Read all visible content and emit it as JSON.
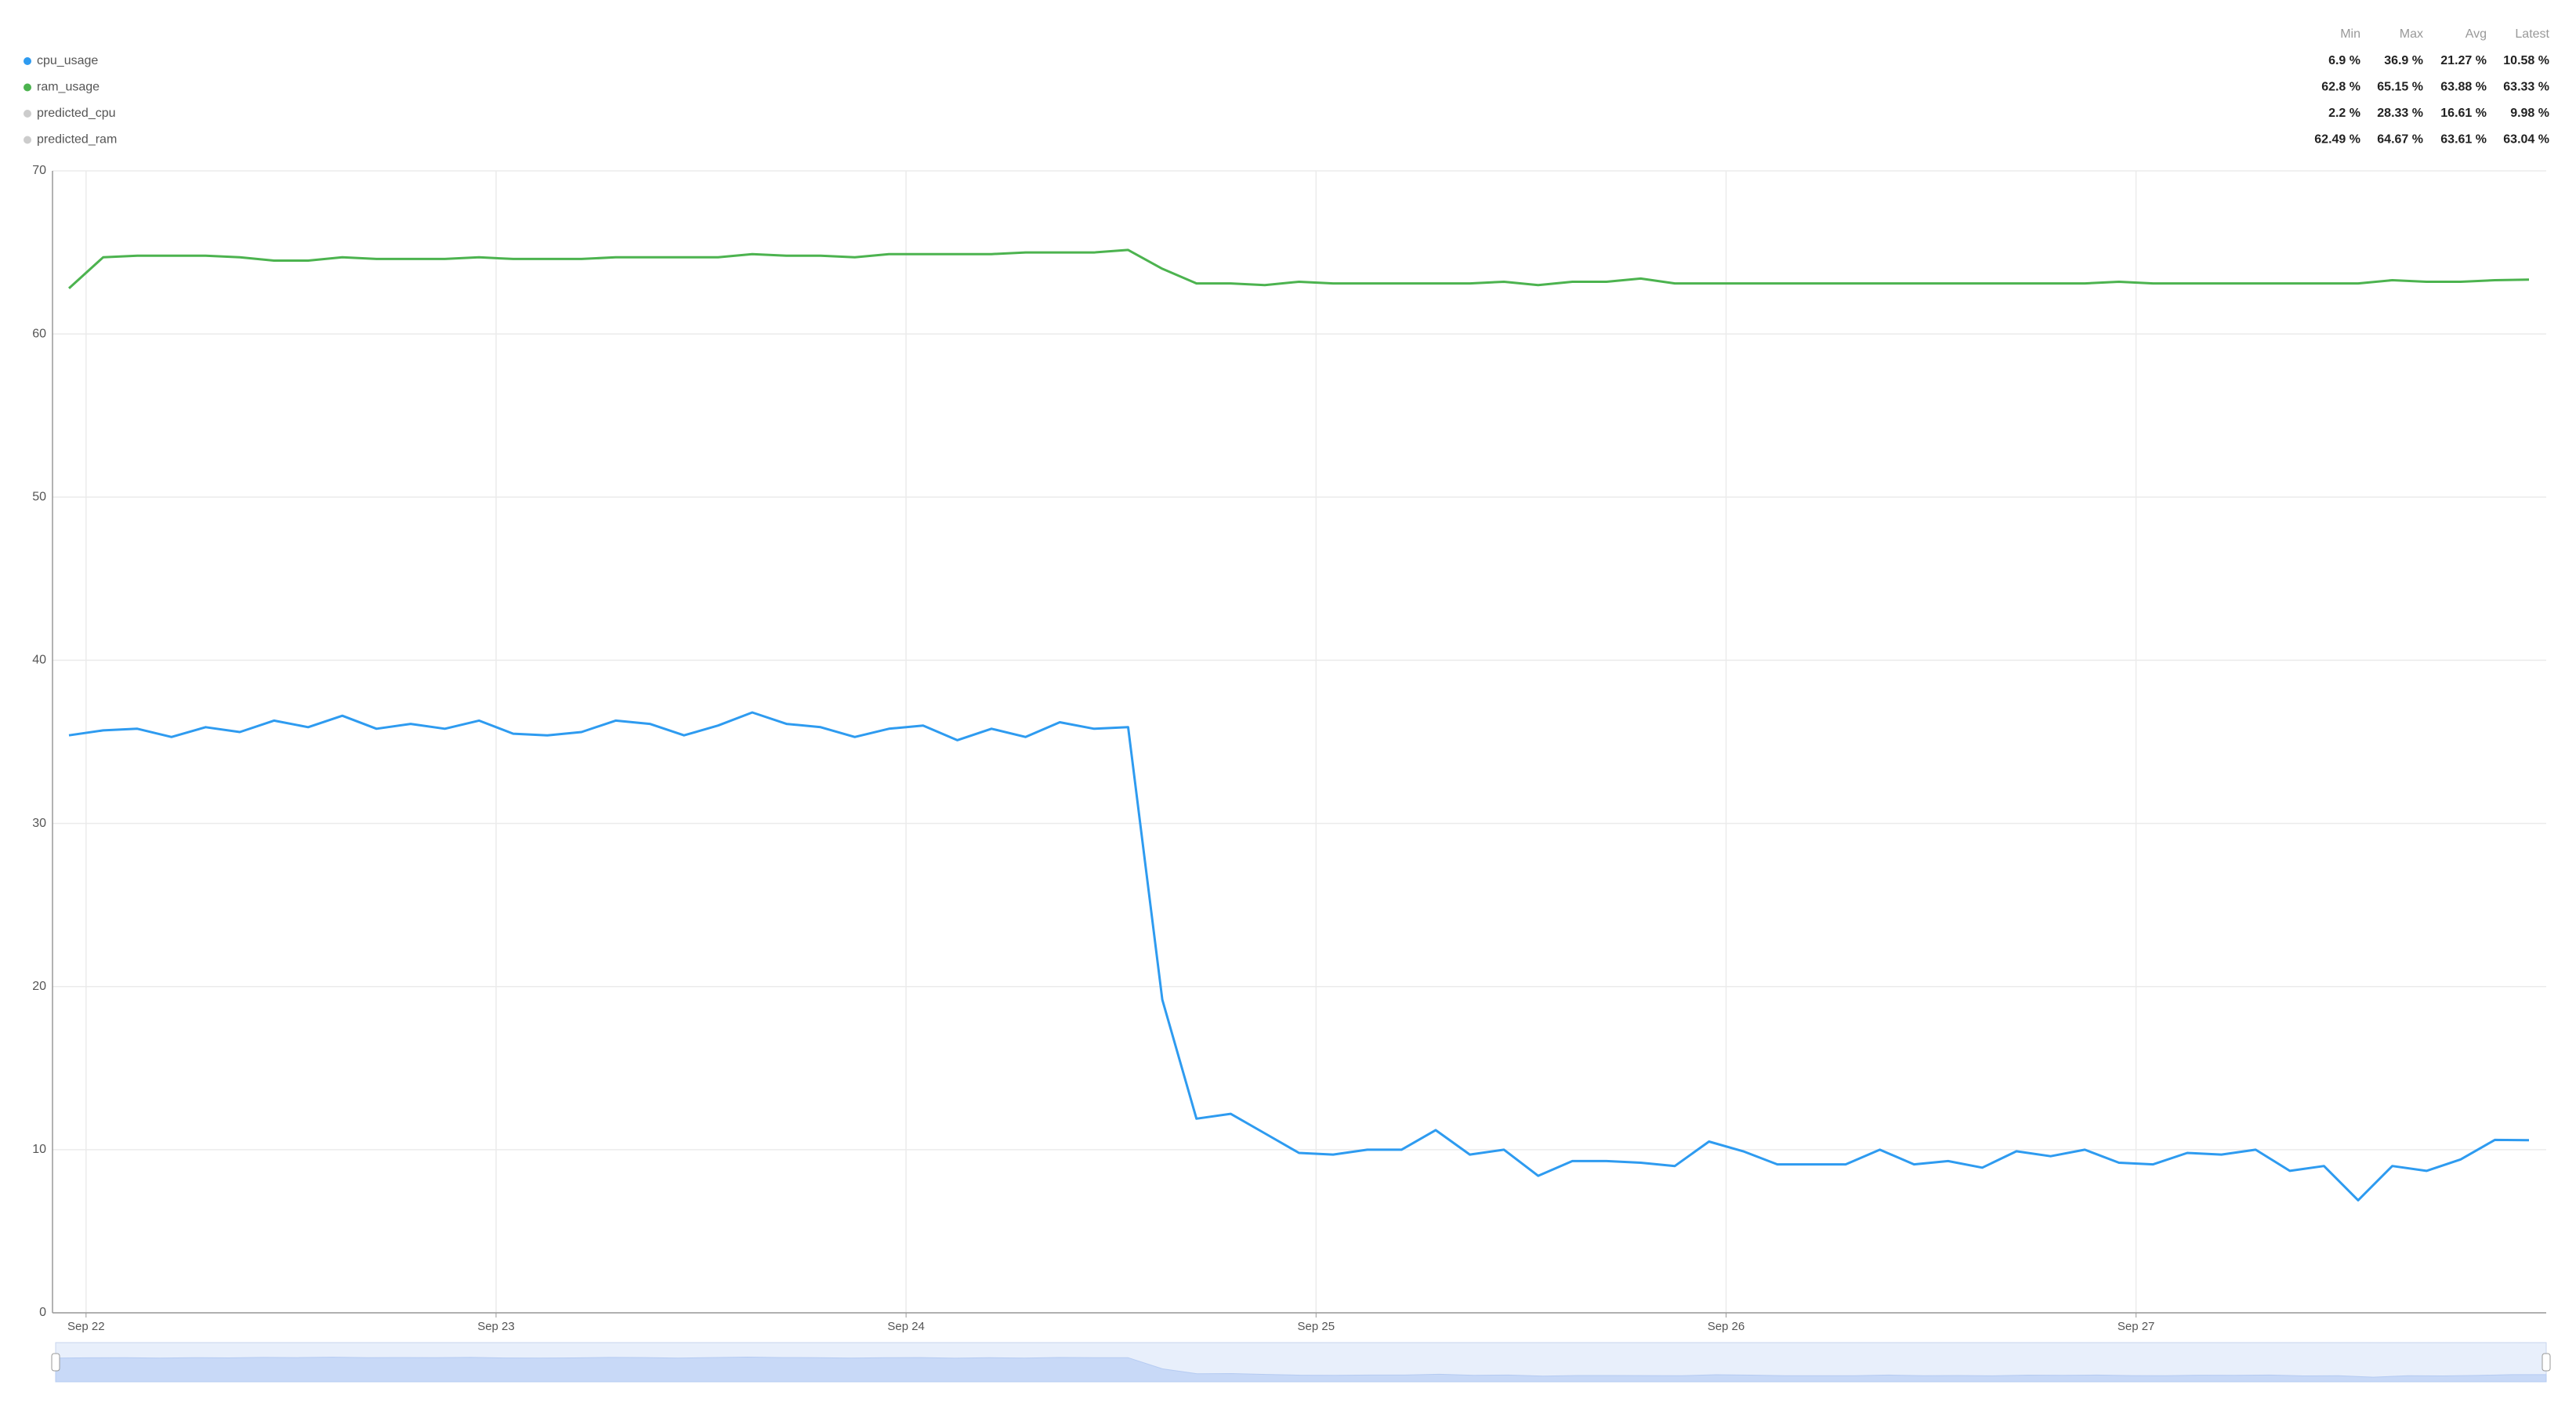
{
  "chart_data": {
    "type": "line",
    "categories": [
      "Sep 22",
      null,
      null,
      null,
      null,
      null,
      null,
      null,
      null,
      null,
      null,
      null,
      "Sep 23",
      null,
      null,
      null,
      null,
      null,
      null,
      null,
      null,
      null,
      null,
      null,
      "Sep 24",
      null,
      null,
      null,
      null,
      null,
      null,
      null,
      null,
      null,
      null,
      null,
      "Sep 25",
      null,
      null,
      null,
      null,
      null,
      null,
      null,
      null,
      null,
      null,
      null,
      "Sep 26",
      null,
      null,
      null,
      null,
      null,
      null,
      null,
      null,
      null,
      null,
      null,
      "Sep 27",
      null,
      null,
      null,
      null,
      null,
      null,
      null,
      null,
      null,
      null,
      null,
      null
    ],
    "ylim": [
      0,
      70
    ],
    "yticks": [
      0,
      10,
      20,
      30,
      40,
      50,
      60,
      70
    ],
    "grid": true,
    "stat_headers": [
      "Min",
      "Max",
      "Avg",
      "Latest"
    ],
    "series": [
      {
        "name": "cpu_usage",
        "color": "#2e9bf0",
        "stats": [
          "6.9 %",
          "36.9 %",
          "21.27 %",
          "10.58 %"
        ],
        "values": [
          35.4,
          35.7,
          35.8,
          35.3,
          35.9,
          35.6,
          36.3,
          35.9,
          36.6,
          35.8,
          36.1,
          35.8,
          36.3,
          35.5,
          35.4,
          35.6,
          36.3,
          36.1,
          35.4,
          36.0,
          36.8,
          36.1,
          35.9,
          35.3,
          35.8,
          36.0,
          35.1,
          35.8,
          35.3,
          36.2,
          35.8,
          35.9,
          19.2,
          11.9,
          12.2,
          11.0,
          9.8,
          9.7,
          10.0,
          10.0,
          11.2,
          9.7,
          10.0,
          8.4,
          9.3,
          9.3,
          9.2,
          9.0,
          10.5,
          9.9,
          9.1,
          9.1,
          9.1,
          10.0,
          9.1,
          9.3,
          8.9,
          9.9,
          9.6,
          10.0,
          9.2,
          9.1,
          9.8,
          9.7,
          10.0,
          8.7,
          9.0,
          6.9,
          9.0,
          8.7,
          9.4,
          10.6,
          10.58
        ]
      },
      {
        "name": "ram_usage",
        "color": "#4cb34f",
        "stats": [
          "62.8 %",
          "65.15 %",
          "63.88 %",
          "63.33 %"
        ],
        "values": [
          62.8,
          64.7,
          64.8,
          64.8,
          64.8,
          64.7,
          64.5,
          64.5,
          64.7,
          64.6,
          64.6,
          64.6,
          64.7,
          64.6,
          64.6,
          64.6,
          64.7,
          64.7,
          64.7,
          64.7,
          64.9,
          64.8,
          64.8,
          64.7,
          64.9,
          64.9,
          64.9,
          64.9,
          65.0,
          65.0,
          65.0,
          65.15,
          64.0,
          63.1,
          63.1,
          63.0,
          63.2,
          63.1,
          63.1,
          63.1,
          63.1,
          63.1,
          63.2,
          63.0,
          63.2,
          63.2,
          63.4,
          63.1,
          63.1,
          63.1,
          63.1,
          63.1,
          63.1,
          63.1,
          63.1,
          63.1,
          63.1,
          63.1,
          63.1,
          63.1,
          63.2,
          63.1,
          63.1,
          63.1,
          63.1,
          63.1,
          63.1,
          63.1,
          63.3,
          63.2,
          63.2,
          63.3,
          63.33
        ]
      },
      {
        "name": "predicted_cpu",
        "color": "#cccccc",
        "stats": [
          "2.2 %",
          "28.33 %",
          "16.61 %",
          "9.98 %"
        ]
      },
      {
        "name": "predicted_ram",
        "color": "#cccccc",
        "stats": [
          "62.49 %",
          "64.67 %",
          "63.61 %",
          "63.04 %"
        ]
      }
    ]
  }
}
